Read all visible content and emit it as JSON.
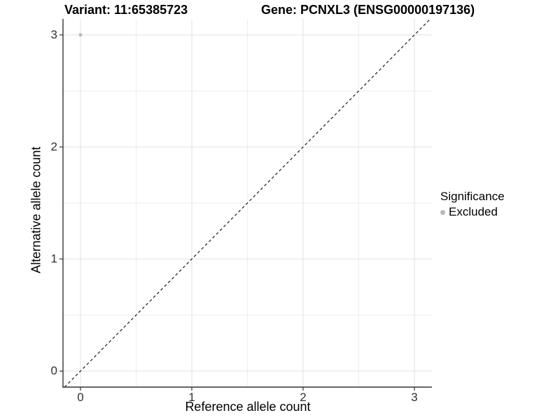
{
  "header": {
    "variant_title": "Variant: 11:65385723",
    "gene_title": "Gene: PCNXL3 (ENSG00000197136)"
  },
  "chart_data": {
    "type": "scatter",
    "xlabel": "Reference allele count",
    "ylabel": "Alternative allele count",
    "xlim": [
      -0.157,
      3.157
    ],
    "ylim": [
      -0.143,
      3.143
    ],
    "xticks": [
      0,
      1,
      2,
      3
    ],
    "yticks": [
      0,
      1,
      2,
      3
    ],
    "grid": {
      "minor_x": [
        0.5,
        1.5,
        2.5
      ],
      "minor_y": [
        0.5,
        1.5,
        2.5
      ]
    },
    "points": [
      {
        "x": 0,
        "y": 3,
        "series": "Excluded"
      }
    ],
    "reference_line": {
      "type": "identity",
      "slope": 1,
      "intercept": 0,
      "style": "dashed"
    },
    "legend": {
      "title": "Significance",
      "position": "right",
      "items": [
        {
          "label": "Excluded",
          "color": "#b9b9b9"
        }
      ]
    },
    "colors": {
      "point": "#b9b9b9",
      "grid_major": "#e2e2e2",
      "grid_minor": "#eeeeee",
      "axis": "#333333",
      "reference_line": "#1a1a1a",
      "background": "#ffffff"
    }
  }
}
